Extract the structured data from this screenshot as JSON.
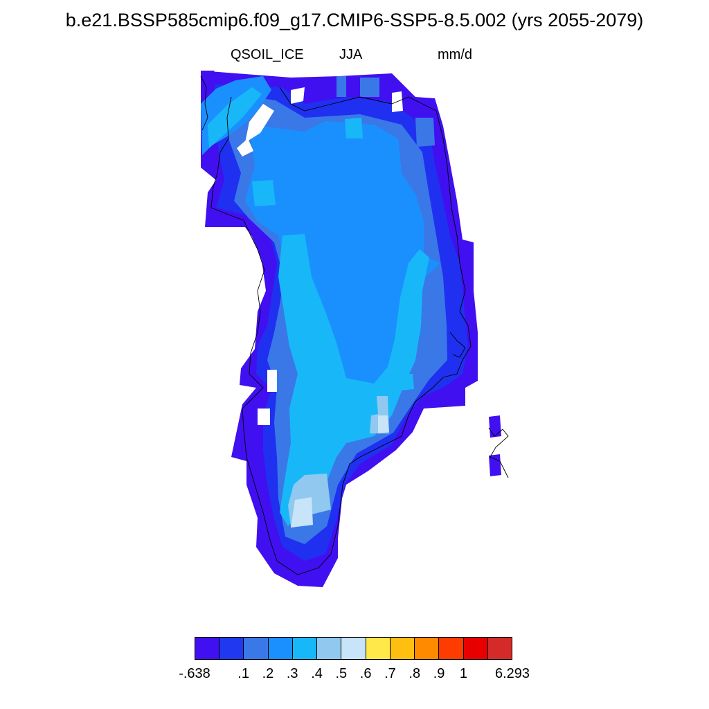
{
  "title": "b.e21.BSSP585cmip6.f09_g17.CMIP6-SSP5-8.5.002 (yrs 2055-2079)",
  "variable": "QSOIL_ICE",
  "season": "JJA",
  "units": "mm/d",
  "colors": {
    "lvl0": "#4010f0",
    "lvl1": "#2030f0",
    "lvl2": "#3a78e8",
    "lvl3": "#1a90ff",
    "lvl4": "#18b8f8",
    "lvl5": "#90c8f0",
    "lvl6": "#c8e4f8",
    "coast": "#000000"
  },
  "colorbar": {
    "colors": [
      "#4010f0",
      "#2038f0",
      "#3a78e8",
      "#1a90ff",
      "#18b8f8",
      "#90c8f0",
      "#c8e4f8",
      "#ffe84a",
      "#ffbf10",
      "#ff8a00",
      "#ff3c00",
      "#e80000",
      "#d42a2a"
    ],
    "labels": [
      "-.638",
      ".1",
      ".2",
      ".3",
      ".4",
      ".5",
      ".6",
      ".7",
      ".8",
      ".9",
      "1",
      "6.293"
    ]
  }
}
